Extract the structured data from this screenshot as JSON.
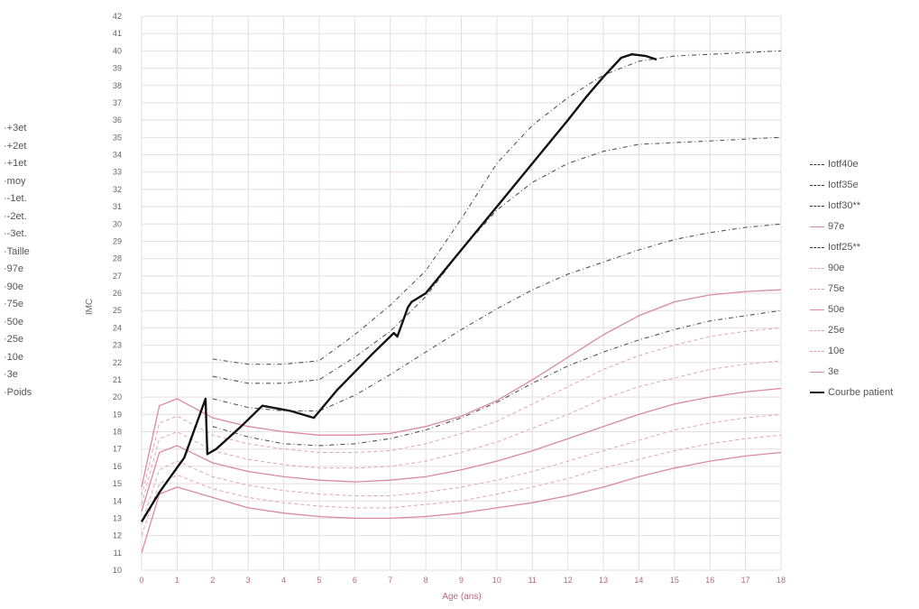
{
  "chart_data": {
    "type": "line",
    "xlabel": "Age (ans)",
    "ylabel": "IMC",
    "xlim": [
      0,
      18
    ],
    "ylim": [
      10,
      42
    ],
    "x_ticks": [
      "0",
      "1",
      "2",
      "3",
      "4",
      "5",
      "6",
      "7",
      "8",
      "9",
      "10",
      "11",
      "12",
      "13",
      "14",
      "15",
      "16",
      "17",
      "18"
    ],
    "y_ticks": [
      "10",
      "11",
      "12",
      "13",
      "14",
      "15",
      "16",
      "17",
      "18",
      "19",
      "20",
      "21",
      "22",
      "23",
      "24",
      "25",
      "26",
      "27",
      "28",
      "29",
      "30",
      "31",
      "32",
      "33",
      "34",
      "35",
      "36",
      "37",
      "38",
      "39",
      "40",
      "41",
      "42"
    ],
    "grid": true,
    "left_legend": [
      "+3et",
      "+2et",
      "+1et",
      "moy",
      "-1et.",
      "-2et.",
      "-3et.",
      "Taille",
      "97e",
      "90e",
      "75e",
      "50e",
      "25e",
      "10e",
      "3e",
      "Poids"
    ],
    "right_legend": [
      "Iotf40e",
      "Iotf35e",
      "Iotf30**",
      "97e",
      "Iotf25**",
      "90e",
      "75e",
      "50e",
      "25e",
      "10e",
      "3e",
      "Courbe patient"
    ],
    "colors": {
      "percentile": "#e2a4b6",
      "percentile_main": "#d98aa0",
      "iotf": "#555555",
      "patient": "#111111",
      "grid": "#e6dde0",
      "axis_text": "#666666"
    },
    "series": [
      {
        "name": "Courbe patient",
        "style": "patient",
        "x": [
          0,
          0.5,
          1.2,
          1.8,
          1.85,
          2.1,
          2.8,
          3.4,
          4.2,
          4.85,
          5.5,
          6.5,
          7.1,
          7.2,
          7.5,
          7.6,
          8.0,
          9.0,
          10.0,
          11.0,
          12.0,
          12.5,
          13.0,
          13.5,
          13.8,
          14.2,
          14.5
        ],
        "y": [
          12.8,
          14.5,
          16.5,
          19.9,
          16.7,
          17.0,
          18.3,
          19.5,
          19.2,
          18.8,
          20.4,
          22.5,
          23.7,
          23.5,
          25.2,
          25.5,
          26.0,
          28.5,
          31.0,
          33.5,
          36.0,
          37.3,
          38.5,
          39.6,
          39.8,
          39.7,
          39.5
        ]
      },
      {
        "name": "Iotf40e",
        "style": "iotf",
        "x": [
          2,
          3,
          4,
          5,
          6,
          7,
          8,
          9,
          10,
          11,
          12,
          13,
          14,
          15,
          16,
          17,
          18
        ],
        "y": [
          22.2,
          21.9,
          21.9,
          22.1,
          23.6,
          25.3,
          27.3,
          30.3,
          33.5,
          35.7,
          37.3,
          38.6,
          39.4,
          39.7,
          39.8,
          39.9,
          40.0
        ]
      },
      {
        "name": "Iotf35e",
        "style": "iotf",
        "x": [
          2,
          3,
          4,
          5,
          6,
          7,
          8,
          9,
          10,
          11,
          12,
          13,
          14,
          15,
          16,
          17,
          18
        ],
        "y": [
          21.2,
          20.8,
          20.8,
          21.0,
          22.3,
          23.8,
          25.8,
          28.5,
          30.8,
          32.4,
          33.5,
          34.2,
          34.6,
          34.7,
          34.8,
          34.9,
          35.0
        ]
      },
      {
        "name": "Iotf30**",
        "style": "iotf",
        "x": [
          2,
          3,
          4,
          5,
          6,
          7,
          8,
          9,
          10,
          11,
          12,
          13,
          14,
          15,
          16,
          17,
          18
        ],
        "y": [
          19.9,
          19.4,
          19.2,
          19.2,
          20.1,
          21.3,
          22.6,
          23.9,
          25.1,
          26.2,
          27.1,
          27.8,
          28.5,
          29.1,
          29.5,
          29.8,
          30.0
        ]
      },
      {
        "name": "Iotf25**",
        "style": "iotf",
        "x": [
          2,
          3,
          4,
          5,
          6,
          7,
          8,
          9,
          10,
          11,
          12,
          13,
          14,
          15,
          16,
          17,
          18
        ],
        "y": [
          18.3,
          17.7,
          17.3,
          17.2,
          17.3,
          17.6,
          18.1,
          18.8,
          19.7,
          20.8,
          21.8,
          22.6,
          23.3,
          23.9,
          24.4,
          24.7,
          25.0
        ]
      },
      {
        "name": "97e",
        "style": "pct-main",
        "x": [
          0,
          0.5,
          1,
          2,
          3,
          4,
          5,
          6,
          7,
          8,
          9,
          10,
          11,
          12,
          13,
          14,
          15,
          16,
          17,
          18
        ],
        "y": [
          14.8,
          19.5,
          19.9,
          18.8,
          18.3,
          18.0,
          17.8,
          17.8,
          17.9,
          18.3,
          18.9,
          19.8,
          21.0,
          22.3,
          23.6,
          24.7,
          25.5,
          25.9,
          26.1,
          26.2
        ]
      },
      {
        "name": "90e",
        "style": "pct",
        "x": [
          0,
          0.5,
          1,
          2,
          3,
          4,
          5,
          6,
          7,
          8,
          9,
          10,
          11,
          12,
          13,
          14,
          15,
          16,
          17,
          18
        ],
        "y": [
          14.3,
          18.5,
          18.9,
          17.8,
          17.3,
          17.0,
          16.8,
          16.8,
          16.9,
          17.3,
          17.9,
          18.6,
          19.6,
          20.6,
          21.6,
          22.4,
          23.0,
          23.5,
          23.8,
          24.0
        ]
      },
      {
        "name": "75e",
        "style": "pct",
        "x": [
          0,
          0.5,
          1,
          2,
          3,
          4,
          5,
          6,
          7,
          8,
          9,
          10,
          11,
          12,
          13,
          14,
          15,
          16,
          17,
          18
        ],
        "y": [
          13.8,
          17.6,
          18.0,
          16.9,
          16.4,
          16.1,
          15.9,
          15.9,
          16.0,
          16.3,
          16.8,
          17.4,
          18.2,
          19.0,
          19.9,
          20.6,
          21.1,
          21.6,
          21.9,
          22.1
        ]
      },
      {
        "name": "50e",
        "style": "pct-main",
        "x": [
          0,
          0.5,
          1,
          2,
          3,
          4,
          5,
          6,
          7,
          8,
          9,
          10,
          11,
          12,
          13,
          14,
          15,
          16,
          17,
          18
        ],
        "y": [
          13.4,
          16.8,
          17.2,
          16.2,
          15.7,
          15.4,
          15.2,
          15.1,
          15.2,
          15.4,
          15.8,
          16.3,
          16.9,
          17.6,
          18.3,
          19.0,
          19.6,
          20.0,
          20.3,
          20.5
        ]
      },
      {
        "name": "25e",
        "style": "pct",
        "x": [
          0,
          0.5,
          1,
          2,
          3,
          4,
          5,
          6,
          7,
          8,
          9,
          10,
          11,
          12,
          13,
          14,
          15,
          16,
          17,
          18
        ],
        "y": [
          12.7,
          15.8,
          16.3,
          15.4,
          14.9,
          14.6,
          14.4,
          14.3,
          14.3,
          14.5,
          14.8,
          15.2,
          15.7,
          16.3,
          16.9,
          17.5,
          18.1,
          18.5,
          18.8,
          19.0
        ]
      },
      {
        "name": "10e",
        "style": "pct",
        "x": [
          0,
          0.5,
          1,
          2,
          3,
          4,
          5,
          6,
          7,
          8,
          9,
          10,
          11,
          12,
          13,
          14,
          15,
          16,
          17,
          18
        ],
        "y": [
          12.0,
          15.0,
          15.5,
          14.7,
          14.2,
          13.9,
          13.7,
          13.6,
          13.6,
          13.8,
          14.0,
          14.4,
          14.8,
          15.3,
          15.9,
          16.4,
          16.9,
          17.3,
          17.6,
          17.8
        ]
      },
      {
        "name": "3e",
        "style": "pct-main",
        "x": [
          0,
          0.5,
          1,
          2,
          3,
          4,
          5,
          6,
          7,
          8,
          9,
          10,
          11,
          12,
          13,
          14,
          15,
          16,
          17,
          18
        ],
        "y": [
          11.0,
          14.4,
          14.8,
          14.2,
          13.6,
          13.3,
          13.1,
          13.0,
          13.0,
          13.1,
          13.3,
          13.6,
          13.9,
          14.3,
          14.8,
          15.4,
          15.9,
          16.3,
          16.6,
          16.8
        ]
      }
    ]
  }
}
